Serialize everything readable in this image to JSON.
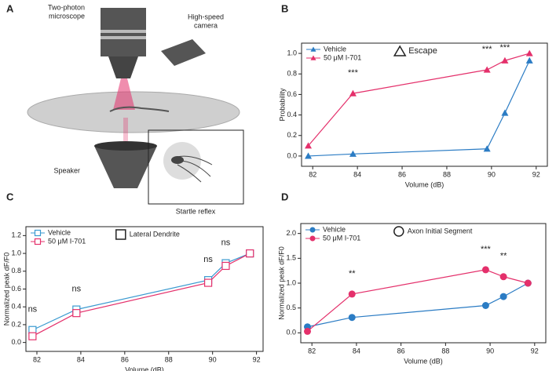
{
  "illustration": {
    "panel": "A",
    "labels": [
      "Two-photon",
      "microscope",
      "High-speed",
      "camera",
      "Speaker",
      "Startle reflex"
    ]
  },
  "chart_data": [
    {
      "type": "line",
      "panel": "B",
      "xlabel": "Volume (dB)",
      "ylabel": "Probability",
      "marker": "triangle",
      "note": "Escape",
      "xlim": [
        81.5,
        92.5
      ],
      "xticks": [
        82,
        84,
        86,
        88,
        90,
        92
      ],
      "ylim": [
        -0.1,
        1.1
      ],
      "yticks": [
        {
          "value": 0,
          "label": "0.0"
        },
        {
          "value": 0.2,
          "label": "0.2"
        },
        {
          "value": 0.4,
          "label": "0.4"
        },
        {
          "value": 0.6,
          "label": "0.6"
        },
        {
          "value": 0.8,
          "label": "0.8"
        },
        {
          "value": 1,
          "label": "1.0"
        }
      ],
      "series": [
        {
          "name": "Vehicle",
          "color": "#2b7cc4",
          "x": [
            81.8,
            83.8,
            89.8,
            90.6,
            91.7
          ],
          "values": [
            0,
            0.02,
            0.07,
            0.42,
            0.93
          ]
        },
        {
          "name": "50 μM I-701",
          "color": "#e4306b",
          "x": [
            81.8,
            83.8,
            89.8,
            90.6,
            91.7
          ],
          "values": [
            0.1,
            0.61,
            0.84,
            0.93,
            1.0
          ]
        }
      ],
      "annotations": [
        {
          "text": "***",
          "x": 83.8
        },
        {
          "text": "***",
          "x": 89.8
        },
        {
          "text": "***",
          "x": 90.6
        }
      ]
    },
    {
      "type": "line",
      "panel": "C",
      "xlabel": "Volume (dB)",
      "ylabel": "Normalized peak dF/F0",
      "marker": "square",
      "note": "Lateral Dendrite",
      "xlim": [
        81.5,
        92.3
      ],
      "xticks": [
        82,
        84,
        86,
        88,
        90,
        92
      ],
      "ylim": [
        -0.1,
        1.3
      ],
      "yticks": [
        {
          "value": 0,
          "label": "0.0"
        },
        {
          "value": 0.2,
          "label": "0.2"
        },
        {
          "value": 0.4,
          "label": "0.4"
        },
        {
          "value": 0.6,
          "label": "0.6"
        },
        {
          "value": 0.8,
          "label": "0.8"
        },
        {
          "value": 1,
          "label": "1.0"
        },
        {
          "value": 1.2,
          "label": "1.2"
        }
      ],
      "series": [
        {
          "name": "Vehicle",
          "color": "#3a9ad0",
          "x": [
            81.8,
            83.8,
            89.8,
            90.6,
            91.7
          ],
          "values": [
            0.14,
            0.37,
            0.7,
            0.89,
            1.0
          ]
        },
        {
          "name": "50 μM I-701",
          "color": "#e4306b",
          "x": [
            81.8,
            83.8,
            89.8,
            90.6,
            91.7
          ],
          "values": [
            0.07,
            0.33,
            0.67,
            0.86,
            1.0
          ]
        }
      ],
      "annotations": [
        {
          "text": "ns",
          "x": 81.8
        },
        {
          "text": "ns",
          "x": 83.8
        },
        {
          "text": "ns",
          "x": 89.8
        },
        {
          "text": "ns",
          "x": 90.6
        }
      ]
    },
    {
      "type": "line",
      "panel": "D",
      "xlabel": "Volume (dB)",
      "ylabel": "Normalized peak dF/F0",
      "marker": "circle",
      "note": "Axon Initial Segment",
      "xlim": [
        81.5,
        92.5
      ],
      "xticks": [
        82,
        84,
        86,
        88,
        90,
        92
      ],
      "ylim": [
        -0.2,
        2.2
      ],
      "yticks": [
        {
          "value": 0,
          "label": "0.0"
        },
        {
          "value": 0.5,
          "label": "0.5"
        },
        {
          "value": 1,
          "label": "1.0"
        },
        {
          "value": 1.5,
          "label": "1.5"
        },
        {
          "value": 2,
          "label": "2.0"
        }
      ],
      "series": [
        {
          "name": "Vehicle",
          "color": "#2b7cc4",
          "x": [
            81.8,
            83.8,
            89.8,
            90.6,
            91.7
          ],
          "values": [
            0.12,
            0.31,
            0.55,
            0.73,
            1.0
          ]
        },
        {
          "name": "50 μM I-701",
          "color": "#e4306b",
          "x": [
            81.8,
            83.8,
            89.8,
            90.6,
            91.7
          ],
          "values": [
            0.03,
            0.78,
            1.27,
            1.13,
            1.0
          ]
        }
      ],
      "annotations": [
        {
          "text": "**",
          "x": 83.8
        },
        {
          "text": "***",
          "x": 89.8
        },
        {
          "text": "**",
          "x": 90.6
        }
      ]
    }
  ]
}
